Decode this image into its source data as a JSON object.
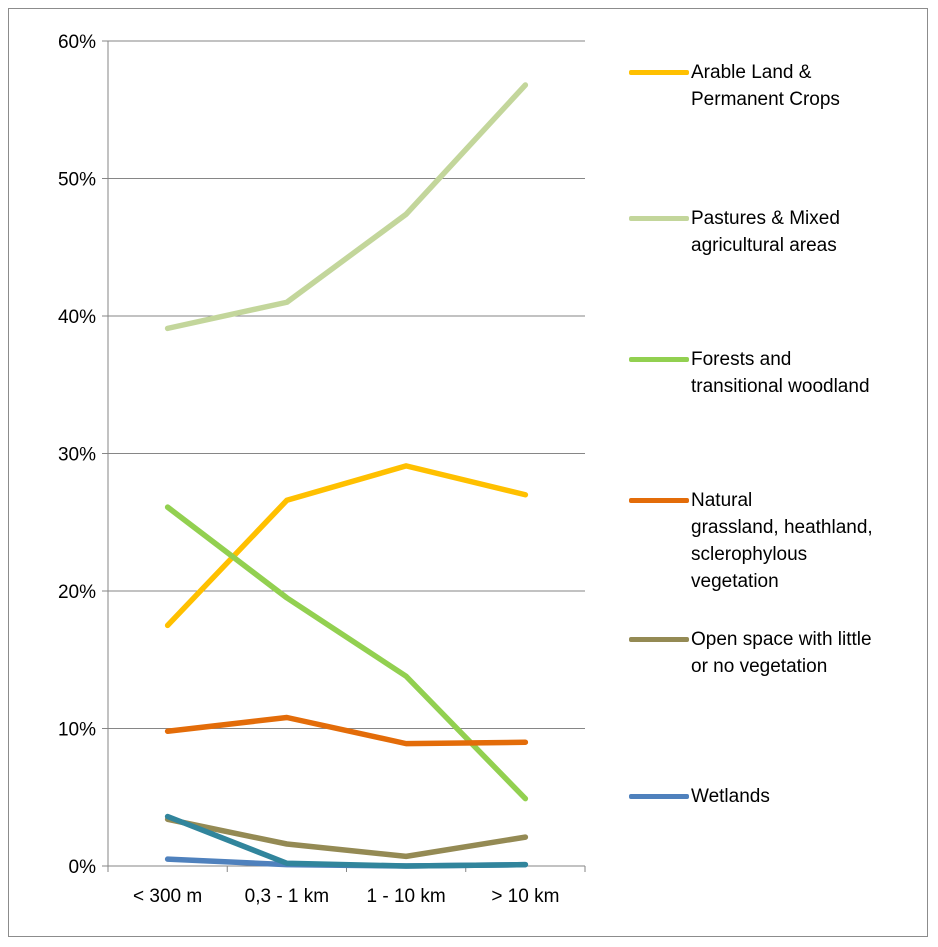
{
  "chart_data": {
    "type": "line",
    "title": "",
    "xlabel": "",
    "ylabel": "",
    "categories": [
      "< 300 m",
      "0,3 - 1 km",
      "1 - 10 km",
      "> 10 km"
    ],
    "ylim": [
      0,
      60
    ],
    "yticks": [
      "0%",
      "10%",
      "20%",
      "30%",
      "40%",
      "50%",
      "60%"
    ],
    "grid": true,
    "legend_position": "right",
    "series": [
      {
        "name": "Arable Land &\nPermanent Crops",
        "color": "#FFC000",
        "values": [
          17.5,
          26.6,
          29.1,
          27.0
        ]
      },
      {
        "name": "Pastures & Mixed\nagricultural areas",
        "color": "#C3D69B",
        "values": [
          39.1,
          41.0,
          47.4,
          56.8
        ]
      },
      {
        "name": "Forests and\ntransitional woodland",
        "color": "#92D050",
        "values": [
          26.1,
          19.5,
          13.8,
          4.9
        ]
      },
      {
        "name": "Natural\ngrassland, heathland,\nsclerophylous\nvegetation",
        "color": "#E36C09",
        "values": [
          9.8,
          10.8,
          8.9,
          9.0
        ]
      },
      {
        "name": "Open space with little\nor no vegetation",
        "color": "#948A54",
        "values": [
          3.4,
          1.6,
          0.7,
          2.1
        ]
      },
      {
        "name": "Wetlands",
        "color": "#4F81BD",
        "values": [
          0.5,
          0.1,
          0.0,
          0.1
        ]
      },
      {
        "name": "",
        "color": "#31859C",
        "values": [
          3.6,
          0.2,
          0.0,
          0.1
        ]
      }
    ]
  }
}
